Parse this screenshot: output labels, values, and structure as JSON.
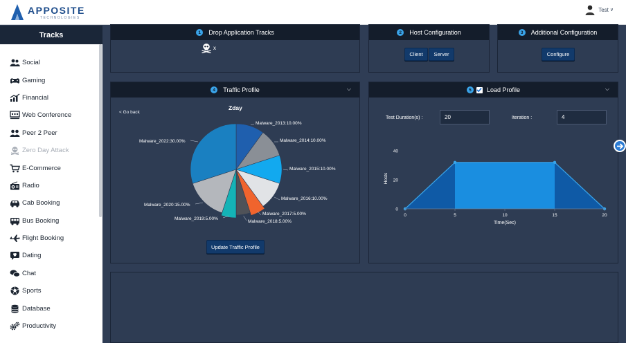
{
  "brand": {
    "name": "APPOSITE",
    "sub": "TECHNOLOGIES"
  },
  "user": {
    "name": "Test",
    "caret": "∨"
  },
  "sidebar": {
    "title": "Tracks",
    "items": [
      {
        "label": "Social",
        "icon": "users-icon",
        "disabled": false
      },
      {
        "label": "Gaming",
        "icon": "gamepad-icon",
        "disabled": false
      },
      {
        "label": "Financial",
        "icon": "chart-icon",
        "disabled": false
      },
      {
        "label": "Web Conference",
        "icon": "conference-icon",
        "disabled": false
      },
      {
        "label": "Peer 2 Peer",
        "icon": "peers-icon",
        "disabled": false
      },
      {
        "label": "Zero Day Attack",
        "icon": "skull-icon",
        "disabled": true
      },
      {
        "label": "E-Commerce",
        "icon": "cart-icon",
        "disabled": false
      },
      {
        "label": "Radio",
        "icon": "radio-icon",
        "disabled": false
      },
      {
        "label": "Cab Booking",
        "icon": "car-icon",
        "disabled": false
      },
      {
        "label": "Bus Booking",
        "icon": "bus-icon",
        "disabled": false
      },
      {
        "label": "Flight Booking",
        "icon": "plane-icon",
        "disabled": false
      },
      {
        "label": "Dating",
        "icon": "heart-chat-icon",
        "disabled": false
      },
      {
        "label": "Chat",
        "icon": "chat-icon",
        "disabled": false
      },
      {
        "label": "Sports",
        "icon": "ball-icon",
        "disabled": false
      },
      {
        "label": "Database",
        "icon": "database-icon",
        "disabled": false
      },
      {
        "label": "Productivity",
        "icon": "gears-icon",
        "disabled": false
      }
    ]
  },
  "panels": {
    "drop": {
      "step": "1",
      "title": "Drop Application Tracks",
      "track_remove": "x"
    },
    "host": {
      "step": "2",
      "title": "Host Configuration",
      "client_label": "Client",
      "server_label": "Server"
    },
    "additional": {
      "step": "3",
      "title": "Additional Configuration",
      "configure_label": "Configure"
    },
    "traffic": {
      "step": "4",
      "title": "Traffic Profile",
      "go_back": "< Go back",
      "update_label": "Update Traffic Profile"
    },
    "load": {
      "step": "5",
      "title": "Load Profile",
      "checked": true,
      "duration_label": "Test Duration(s) :",
      "duration_value": "20",
      "iteration_label": "Iteration :",
      "iteration_value": "4"
    }
  },
  "colors": {
    "accent": "#3aa4e9",
    "header": "#141d2b",
    "panel": "#2e3c53",
    "button": "#123a6b"
  },
  "chart_data": [
    {
      "type": "pie",
      "title": "Zday",
      "slices": [
        {
          "label": "Malware_2013:10.00%",
          "value": 10,
          "color": "#1f5fae"
        },
        {
          "label": "Malware_2014:10.00%",
          "value": 10,
          "color": "#8a8f96"
        },
        {
          "label": "Malware_2015:10.00%",
          "value": 10,
          "color": "#12a9ef"
        },
        {
          "label": "Malware_2016:10.00%",
          "value": 10,
          "color": "#e1e3e6"
        },
        {
          "label": "Malware_2017:5.00%",
          "value": 5,
          "color": "#f0642d"
        },
        {
          "label": "Malware_2018:5.00%",
          "value": 5,
          "color": "#4f5258"
        },
        {
          "label": "Malware_2019:5.00%",
          "value": 5,
          "color": "#14b3b6"
        },
        {
          "label": "Malware_2020:15.00%",
          "value": 15,
          "color": "#b4b7bc"
        },
        {
          "label": "Malware_2022:30.00%",
          "value": 30,
          "color": "#1a80c1"
        }
      ]
    },
    {
      "type": "area",
      "xlabel": "Time(Sec)",
      "ylabel": "Hosts",
      "x": [
        0,
        5,
        15,
        20
      ],
      "y": [
        0,
        32,
        32,
        0
      ],
      "xticks": [
        0,
        5,
        10,
        15,
        20
      ],
      "yticks": [
        0,
        20,
        40
      ],
      "xlim": [
        0,
        20
      ],
      "ylim": [
        0,
        40
      ]
    }
  ]
}
